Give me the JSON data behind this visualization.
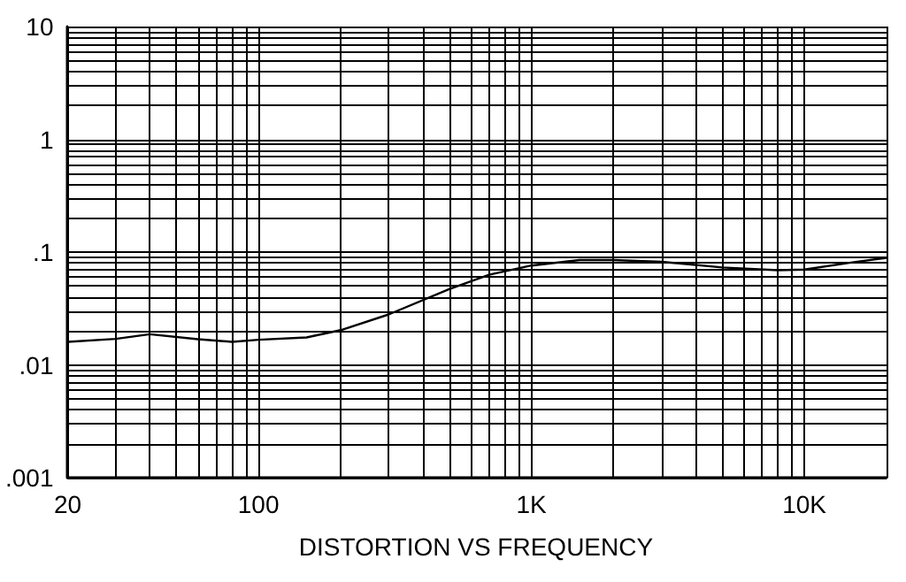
{
  "chart_data": {
    "type": "line",
    "title": "DISTORTION VS FREQUENCY",
    "log": "xy",
    "grid": true,
    "marker": "none",
    "line_style": "solid",
    "x": [
      20,
      30,
      40,
      60,
      80,
      100,
      150,
      200,
      300,
      500,
      700,
      1000,
      1500,
      2000,
      3000,
      5000,
      8000,
      10000,
      15000,
      20000
    ],
    "series": [
      {
        "color": "#000000",
        "values": [
          0.016,
          0.017,
          0.0187,
          0.0169,
          0.016,
          0.0167,
          0.0175,
          0.0203,
          0.028,
          0.047,
          0.063,
          0.076,
          0.085,
          0.085,
          0.082,
          0.073,
          0.069,
          0.07,
          0.081,
          0.089
        ]
      }
    ],
    "xlim": [
      20,
      20000
    ],
    "xticks": [
      20,
      100,
      {
        "value": 1000,
        "label": "1K"
      },
      {
        "value": 10000,
        "label": "10K"
      }
    ],
    "ylim": [
      0.001,
      10
    ],
    "yticks": [
      {
        "value": 0.001,
        "label": ".001"
      },
      {
        "value": 0.01,
        "label": ".01"
      },
      {
        "value": 0.1,
        "label": ".1"
      },
      1,
      10
    ]
  }
}
